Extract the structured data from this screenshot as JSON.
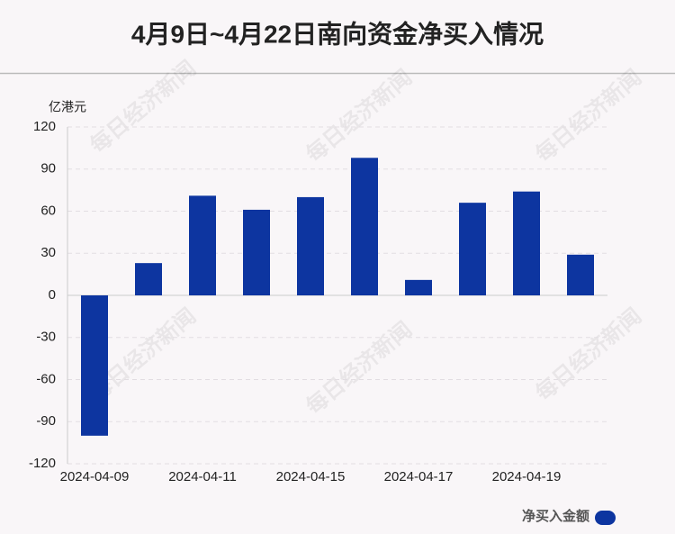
{
  "chart_data": {
    "type": "bar",
    "title": "4月9日~4月22日南向资金净买入情况",
    "y_label": "亿港元",
    "watermark": "每日经济新闻",
    "categories": [
      "2024-04-09",
      null,
      "2024-04-11",
      null,
      "2024-04-15",
      null,
      "2024-04-17",
      null,
      "2024-04-19",
      null
    ],
    "series": [
      {
        "name": "净买入金额",
        "color": "#0d35a0",
        "values": [
          -100,
          23,
          71,
          61,
          70,
          98,
          11,
          66,
          74,
          29
        ]
      }
    ],
    "ylim": [
      -120,
      120
    ],
    "yticks": [
      -120,
      -90,
      -60,
      -30,
      0,
      30,
      60,
      90,
      120
    ],
    "grid": true,
    "legend": "bottom-right"
  }
}
